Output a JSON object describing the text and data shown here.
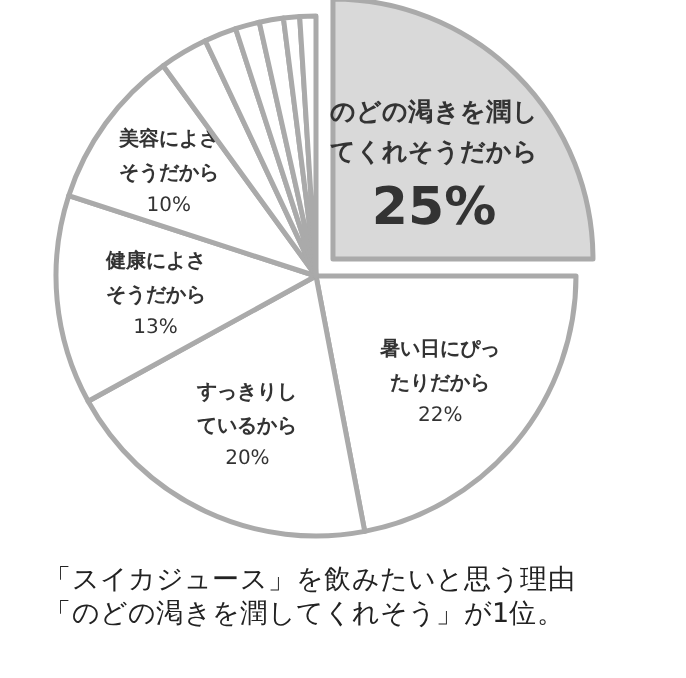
{
  "chart_data": {
    "type": "pie",
    "categories": [
      "のどの渇きを潤してくれそうだから",
      "暑い日にぴったりだから",
      "すっきりしているから",
      "健康によさそうだから",
      "美容によさそうだから",
      null,
      null,
      null,
      null,
      null,
      null
    ],
    "values": [
      25,
      22,
      20,
      13,
      10,
      3,
      2,
      1.5,
      1.5,
      1,
      1
    ],
    "colors": [
      "#d9d9d9",
      "#ffffff",
      "#ffffff",
      "#ffffff",
      "#ffffff",
      "#ffffff",
      "#ffffff",
      "#ffffff",
      "#ffffff",
      "#ffffff",
      "#ffffff"
    ],
    "value_labels": [
      "25%",
      "22%",
      "20%",
      "13%",
      "10%",
      null,
      null,
      null,
      null,
      null,
      null
    ],
    "annotations": [
      "「スイカジュース」を飲みたいと思う理由",
      "「のどの渇きを潤してくれそう」が1位。"
    ]
  }
}
